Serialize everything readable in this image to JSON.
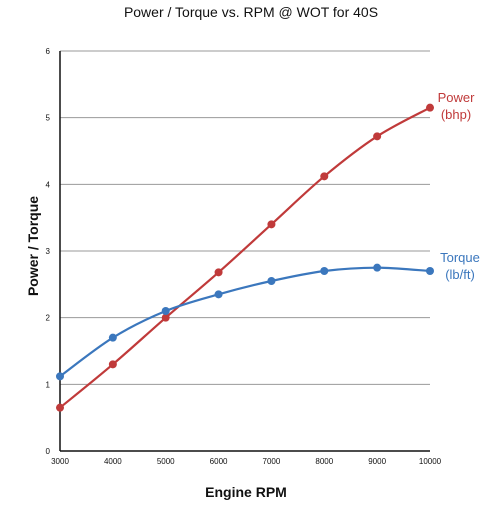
{
  "chart_data": {
    "type": "line",
    "title": "Power / Torque vs. RPM @ WOT for 40S",
    "xlabel": "Engine RPM",
    "ylabel": "Power / Torque",
    "x": [
      3000,
      4000,
      5000,
      6000,
      7000,
      8000,
      9000,
      10000
    ],
    "xticks": [
      "3000",
      "4000",
      "5000",
      "6000",
      "7000",
      "8000",
      "9000",
      "10000"
    ],
    "xlim": [
      3000,
      10000
    ],
    "ylim": [
      0,
      6
    ],
    "yticks": [
      "0",
      "1",
      "2",
      "3",
      "4",
      "5",
      "6"
    ],
    "grid": true,
    "series": [
      {
        "name": "Power",
        "unit": "(bhp)",
        "color": "#c03a3a",
        "values": [
          0.65,
          1.3,
          2.0,
          2.68,
          3.4,
          4.12,
          4.72,
          5.15
        ]
      },
      {
        "name": "Torque",
        "unit": "(lb/ft)",
        "color": "#3b77bd",
        "values": [
          1.12,
          1.7,
          2.1,
          2.35,
          2.55,
          2.7,
          2.75,
          2.7
        ]
      }
    ]
  }
}
